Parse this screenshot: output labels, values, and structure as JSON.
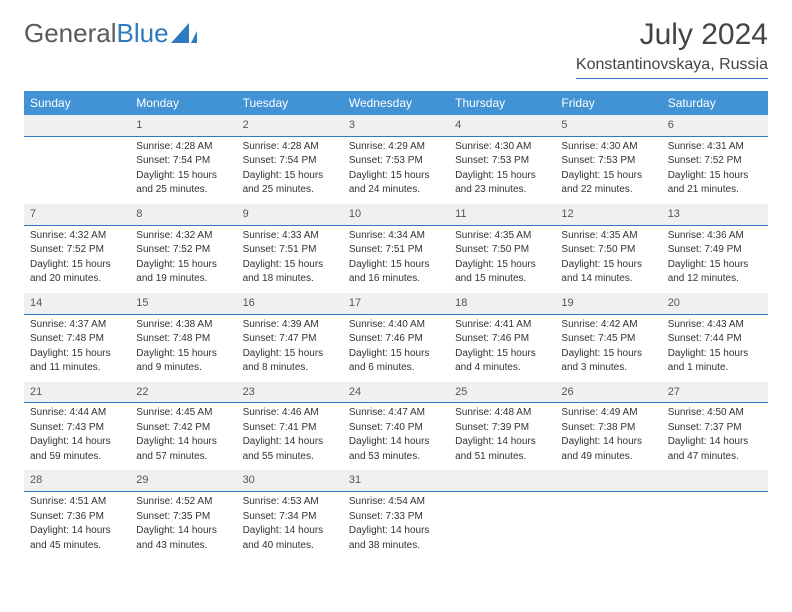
{
  "logo": {
    "text_gray": "General",
    "text_blue": "Blue"
  },
  "title": {
    "month": "July 2024",
    "location": "Konstantinovskaya, Russia"
  },
  "colors": {
    "header_bg": "#4193d5",
    "header_text": "#ffffff",
    "daynum_bg": "#eef0f2",
    "daynum_border": "#2f79c2",
    "text": "#333333",
    "logo_blue": "#2f79c2"
  },
  "weekdays": [
    "Sunday",
    "Monday",
    "Tuesday",
    "Wednesday",
    "Thursday",
    "Friday",
    "Saturday"
  ],
  "weeks": [
    [
      null,
      {
        "n": "1",
        "sunrise": "Sunrise: 4:28 AM",
        "sunset": "Sunset: 7:54 PM",
        "day1": "Daylight: 15 hours",
        "day2": "and 25 minutes."
      },
      {
        "n": "2",
        "sunrise": "Sunrise: 4:28 AM",
        "sunset": "Sunset: 7:54 PM",
        "day1": "Daylight: 15 hours",
        "day2": "and 25 minutes."
      },
      {
        "n": "3",
        "sunrise": "Sunrise: 4:29 AM",
        "sunset": "Sunset: 7:53 PM",
        "day1": "Daylight: 15 hours",
        "day2": "and 24 minutes."
      },
      {
        "n": "4",
        "sunrise": "Sunrise: 4:30 AM",
        "sunset": "Sunset: 7:53 PM",
        "day1": "Daylight: 15 hours",
        "day2": "and 23 minutes."
      },
      {
        "n": "5",
        "sunrise": "Sunrise: 4:30 AM",
        "sunset": "Sunset: 7:53 PM",
        "day1": "Daylight: 15 hours",
        "day2": "and 22 minutes."
      },
      {
        "n": "6",
        "sunrise": "Sunrise: 4:31 AM",
        "sunset": "Sunset: 7:52 PM",
        "day1": "Daylight: 15 hours",
        "day2": "and 21 minutes."
      }
    ],
    [
      {
        "n": "7",
        "sunrise": "Sunrise: 4:32 AM",
        "sunset": "Sunset: 7:52 PM",
        "day1": "Daylight: 15 hours",
        "day2": "and 20 minutes."
      },
      {
        "n": "8",
        "sunrise": "Sunrise: 4:32 AM",
        "sunset": "Sunset: 7:52 PM",
        "day1": "Daylight: 15 hours",
        "day2": "and 19 minutes."
      },
      {
        "n": "9",
        "sunrise": "Sunrise: 4:33 AM",
        "sunset": "Sunset: 7:51 PM",
        "day1": "Daylight: 15 hours",
        "day2": "and 18 minutes."
      },
      {
        "n": "10",
        "sunrise": "Sunrise: 4:34 AM",
        "sunset": "Sunset: 7:51 PM",
        "day1": "Daylight: 15 hours",
        "day2": "and 16 minutes."
      },
      {
        "n": "11",
        "sunrise": "Sunrise: 4:35 AM",
        "sunset": "Sunset: 7:50 PM",
        "day1": "Daylight: 15 hours",
        "day2": "and 15 minutes."
      },
      {
        "n": "12",
        "sunrise": "Sunrise: 4:35 AM",
        "sunset": "Sunset: 7:50 PM",
        "day1": "Daylight: 15 hours",
        "day2": "and 14 minutes."
      },
      {
        "n": "13",
        "sunrise": "Sunrise: 4:36 AM",
        "sunset": "Sunset: 7:49 PM",
        "day1": "Daylight: 15 hours",
        "day2": "and 12 minutes."
      }
    ],
    [
      {
        "n": "14",
        "sunrise": "Sunrise: 4:37 AM",
        "sunset": "Sunset: 7:48 PM",
        "day1": "Daylight: 15 hours",
        "day2": "and 11 minutes."
      },
      {
        "n": "15",
        "sunrise": "Sunrise: 4:38 AM",
        "sunset": "Sunset: 7:48 PM",
        "day1": "Daylight: 15 hours",
        "day2": "and 9 minutes."
      },
      {
        "n": "16",
        "sunrise": "Sunrise: 4:39 AM",
        "sunset": "Sunset: 7:47 PM",
        "day1": "Daylight: 15 hours",
        "day2": "and 8 minutes."
      },
      {
        "n": "17",
        "sunrise": "Sunrise: 4:40 AM",
        "sunset": "Sunset: 7:46 PM",
        "day1": "Daylight: 15 hours",
        "day2": "and 6 minutes."
      },
      {
        "n": "18",
        "sunrise": "Sunrise: 4:41 AM",
        "sunset": "Sunset: 7:46 PM",
        "day1": "Daylight: 15 hours",
        "day2": "and 4 minutes."
      },
      {
        "n": "19",
        "sunrise": "Sunrise: 4:42 AM",
        "sunset": "Sunset: 7:45 PM",
        "day1": "Daylight: 15 hours",
        "day2": "and 3 minutes."
      },
      {
        "n": "20",
        "sunrise": "Sunrise: 4:43 AM",
        "sunset": "Sunset: 7:44 PM",
        "day1": "Daylight: 15 hours",
        "day2": "and 1 minute."
      }
    ],
    [
      {
        "n": "21",
        "sunrise": "Sunrise: 4:44 AM",
        "sunset": "Sunset: 7:43 PM",
        "day1": "Daylight: 14 hours",
        "day2": "and 59 minutes."
      },
      {
        "n": "22",
        "sunrise": "Sunrise: 4:45 AM",
        "sunset": "Sunset: 7:42 PM",
        "day1": "Daylight: 14 hours",
        "day2": "and 57 minutes."
      },
      {
        "n": "23",
        "sunrise": "Sunrise: 4:46 AM",
        "sunset": "Sunset: 7:41 PM",
        "day1": "Daylight: 14 hours",
        "day2": "and 55 minutes."
      },
      {
        "n": "24",
        "sunrise": "Sunrise: 4:47 AM",
        "sunset": "Sunset: 7:40 PM",
        "day1": "Daylight: 14 hours",
        "day2": "and 53 minutes."
      },
      {
        "n": "25",
        "sunrise": "Sunrise: 4:48 AM",
        "sunset": "Sunset: 7:39 PM",
        "day1": "Daylight: 14 hours",
        "day2": "and 51 minutes."
      },
      {
        "n": "26",
        "sunrise": "Sunrise: 4:49 AM",
        "sunset": "Sunset: 7:38 PM",
        "day1": "Daylight: 14 hours",
        "day2": "and 49 minutes."
      },
      {
        "n": "27",
        "sunrise": "Sunrise: 4:50 AM",
        "sunset": "Sunset: 7:37 PM",
        "day1": "Daylight: 14 hours",
        "day2": "and 47 minutes."
      }
    ],
    [
      {
        "n": "28",
        "sunrise": "Sunrise: 4:51 AM",
        "sunset": "Sunset: 7:36 PM",
        "day1": "Daylight: 14 hours",
        "day2": "and 45 minutes."
      },
      {
        "n": "29",
        "sunrise": "Sunrise: 4:52 AM",
        "sunset": "Sunset: 7:35 PM",
        "day1": "Daylight: 14 hours",
        "day2": "and 43 minutes."
      },
      {
        "n": "30",
        "sunrise": "Sunrise: 4:53 AM",
        "sunset": "Sunset: 7:34 PM",
        "day1": "Daylight: 14 hours",
        "day2": "and 40 minutes."
      },
      {
        "n": "31",
        "sunrise": "Sunrise: 4:54 AM",
        "sunset": "Sunset: 7:33 PM",
        "day1": "Daylight: 14 hours",
        "day2": "and 38 minutes."
      },
      null,
      null,
      null
    ]
  ]
}
